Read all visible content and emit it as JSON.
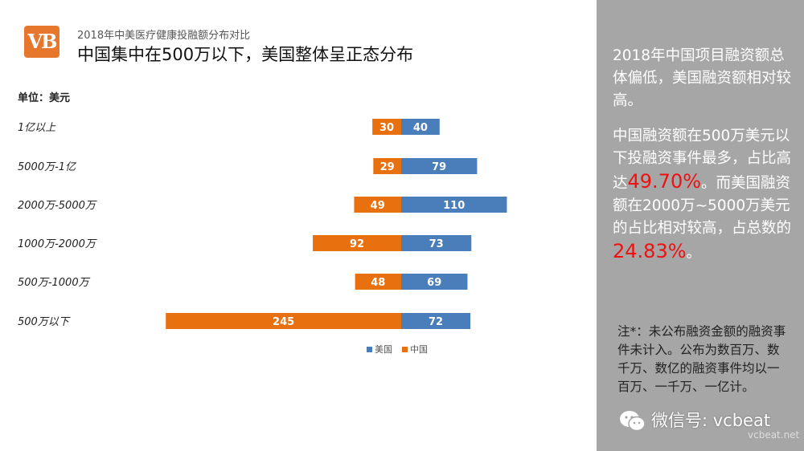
{
  "header": {
    "logo_text": "VB",
    "subtitle": "2018年中美医疗健康投融额分布对比",
    "title": "中国集中在500万以下，美国整体呈正态分布"
  },
  "unit_label": "单位：美元",
  "chart_data": {
    "type": "bar",
    "orientation": "horizontal-diverging",
    "categories": [
      "1亿以上",
      "5000万-1亿",
      "2000万-5000万",
      "1000万-2000万",
      "500万-1000万",
      "500万以下"
    ],
    "series": [
      {
        "name": "美国",
        "color": "#4a7ebb",
        "direction": "right",
        "values": [
          40,
          79,
          110,
          73,
          69,
          72
        ]
      },
      {
        "name": "中国",
        "color": "#e8700f",
        "direction": "left",
        "values": [
          30,
          29,
          49,
          92,
          48,
          245
        ]
      }
    ],
    "legend_position": "bottom",
    "grid": false
  },
  "panel": {
    "para1": "2018年中国项目融资额总体偏低，美国融资额相对较高。",
    "para2_a": "中国融资额在500万美元以下投融资事件最多，占比高达",
    "para2_pct1": "49.70%",
    "para2_b": "。而美国融资额在2000万~5000万美元的占比相对较高，占总数的",
    "para2_pct2": "24.83%",
    "para2_c": "。",
    "note": "注*：未公布融资金额的融资事件未计入。公布为数百万、数千万、数亿的融资事件均以一百万、一千万、一亿计。",
    "wechat_label": "微信号: vcbeat",
    "watermark": "vcbeat.net"
  },
  "colors": {
    "china": "#e8700f",
    "usa": "#4a7ebb",
    "panel_bg": "#a6a6a6",
    "highlight": "#ee1111"
  }
}
